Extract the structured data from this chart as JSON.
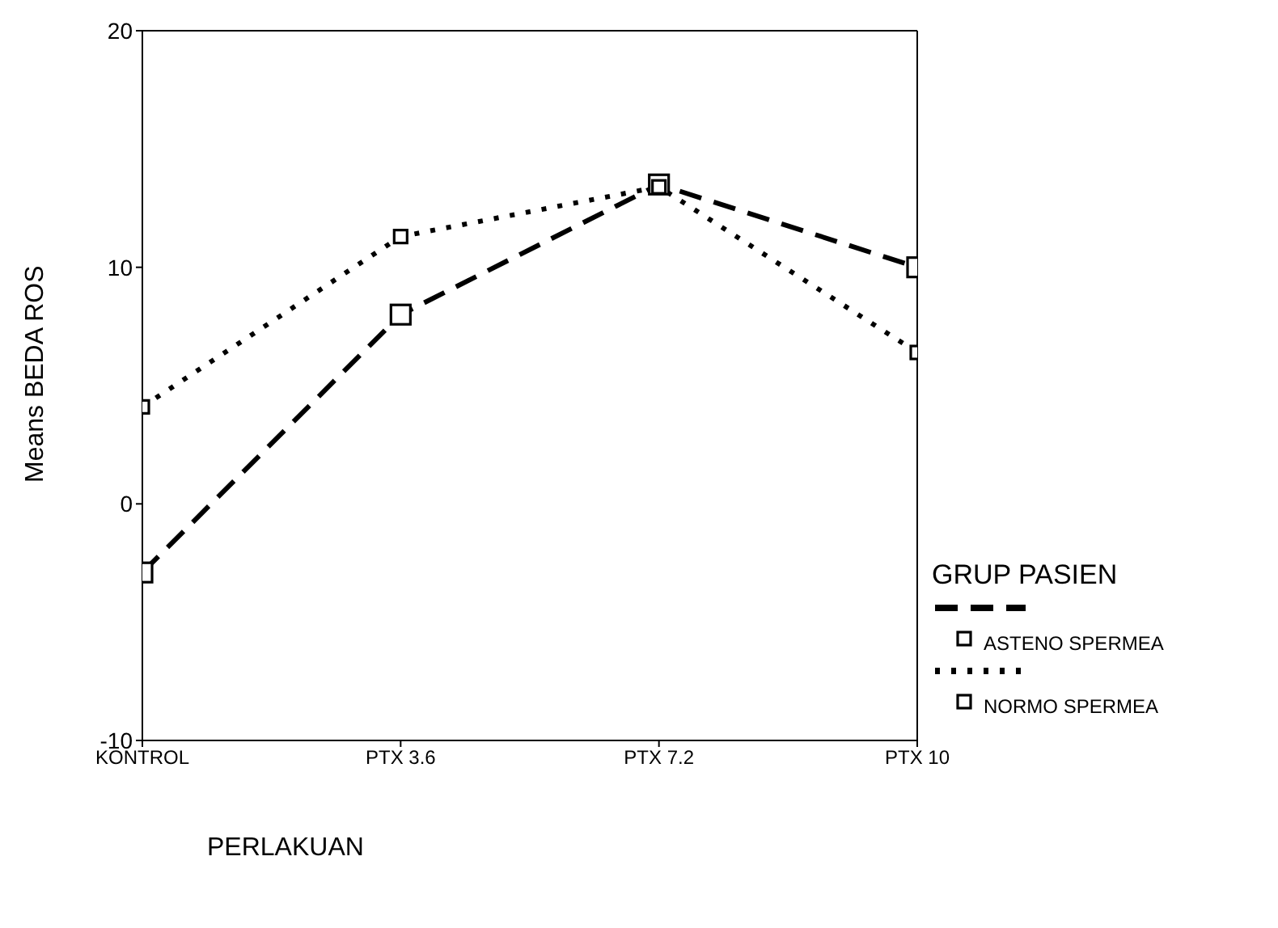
{
  "chart_data": {
    "type": "line",
    "xlabel": "PERLAKUAN",
    "ylabel": "Means BEDA ROS",
    "legend_title": "GRUP PASIEN",
    "categories": [
      "KONTROL",
      "PTX 3.6",
      "PTX 7.2",
      "PTX 10"
    ],
    "series": [
      {
        "name": "ASTENO SPERMEA",
        "color": "#000000",
        "line_style": "dashed",
        "values": [
          -2.9,
          8.0,
          13.5,
          10.0
        ]
      },
      {
        "name": "NORMO SPERMEA",
        "color": "#000000",
        "line_style": "dotted",
        "values": [
          4.1,
          11.3,
          13.4,
          6.4
        ]
      }
    ],
    "ylim": [
      -10,
      20
    ],
    "yticks": [
      -10,
      0,
      10,
      20
    ],
    "grid": false,
    "legend": "right",
    "marker": "square"
  }
}
